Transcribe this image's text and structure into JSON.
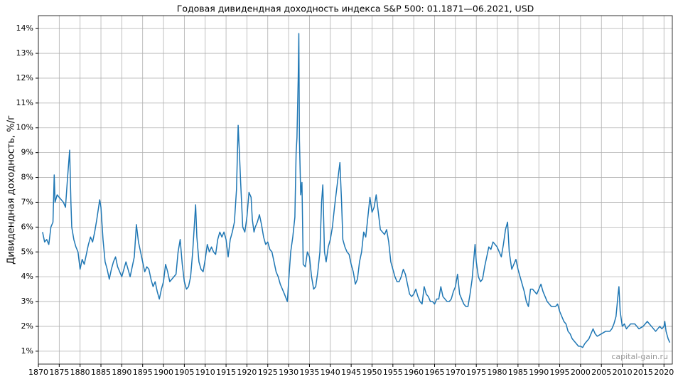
{
  "chart_data": {
    "type": "line",
    "title": "Годовая дивидендная доходность индекса S&P 500: 01.1871—06.2021, USD",
    "y_label": "Дивидендная доходность, %/г",
    "watermark": "capital-gain.ru",
    "color": "#1f77b4",
    "grid": true,
    "xlim": [
      1870,
      2022
    ],
    "ylim": [
      0.48,
      14.52
    ],
    "xticks": [
      1870,
      1875,
      1880,
      1885,
      1890,
      1895,
      1900,
      1905,
      1910,
      1915,
      1920,
      1925,
      1930,
      1935,
      1940,
      1945,
      1950,
      1955,
      1960,
      1965,
      1970,
      1975,
      1980,
      1985,
      1990,
      1995,
      2000,
      2005,
      2010,
      2015,
      2020
    ],
    "yticks": [
      {
        "value": 1,
        "label": "1%"
      },
      {
        "value": 2,
        "label": "2%"
      },
      {
        "value": 3,
        "label": "3%"
      },
      {
        "value": 4,
        "label": "4%"
      },
      {
        "value": 5,
        "label": "5%"
      },
      {
        "value": 6,
        "label": "6%"
      },
      {
        "value": 7,
        "label": "7%"
      },
      {
        "value": 8,
        "label": "8%"
      },
      {
        "value": 9,
        "label": "9%"
      },
      {
        "value": 10,
        "label": "10%"
      },
      {
        "value": 11,
        "label": "11%"
      },
      {
        "value": 12,
        "label": "12%"
      },
      {
        "value": 13,
        "label": "13%"
      },
      {
        "value": 14,
        "label": "14%"
      }
    ],
    "x": [
      1871,
      1871.5,
      1872,
      1872.5,
      1873,
      1873.5,
      1873.8,
      1874,
      1874.5,
      1875,
      1876,
      1876.5,
      1877,
      1877.5,
      1877.8,
      1878,
      1878.5,
      1879,
      1879.5,
      1880,
      1880.5,
      1881,
      1882,
      1882.5,
      1883,
      1883.5,
      1884,
      1884.7,
      1885,
      1885.5,
      1886,
      1886.5,
      1887,
      1887.5,
      1888,
      1888.5,
      1889,
      1890,
      1890.5,
      1891,
      1891.5,
      1892,
      1892.5,
      1893,
      1893.5,
      1894,
      1894.5,
      1895,
      1895.5,
      1896,
      1896.5,
      1897,
      1897.5,
      1898,
      1898.5,
      1899,
      1899.5,
      1900,
      1900.5,
      1901,
      1901.5,
      1902,
      1903,
      1903.5,
      1904,
      1904.5,
      1905,
      1905.5,
      1906,
      1906.5,
      1907,
      1907.7,
      1908,
      1908.5,
      1909,
      1909.5,
      1910,
      1910.5,
      1911,
      1911.5,
      1912,
      1912.5,
      1913,
      1913.5,
      1914,
      1914.5,
      1915,
      1915.5,
      1916,
      1916.5,
      1917,
      1917.5,
      1917.9,
      1918.2,
      1918.5,
      1919,
      1919.5,
      1920,
      1920.5,
      1921,
      1921.3,
      1921.7,
      1922,
      1922.5,
      1923,
      1923.5,
      1924,
      1924.5,
      1925,
      1925.5,
      1926,
      1926.5,
      1927,
      1927.5,
      1928,
      1928.5,
      1929,
      1929.7,
      1930,
      1930.5,
      1931,
      1931.5,
      1931.8,
      1932,
      1932.3,
      1932.45,
      1932.6,
      1932.9,
      1933.2,
      1933.5,
      1934,
      1934.5,
      1935,
      1935.5,
      1936,
      1936.5,
      1937,
      1937.5,
      1937.9,
      1938.2,
      1938.6,
      1939,
      1939.5,
      1940,
      1940.5,
      1941,
      1941.5,
      1942,
      1942.3,
      1942.7,
      1943,
      1943.5,
      1944,
      1944.5,
      1945,
      1945.5,
      1946,
      1946.5,
      1947,
      1947.5,
      1948,
      1948.5,
      1949,
      1949.5,
      1950,
      1950.5,
      1951,
      1951.5,
      1952,
      1952.5,
      1953,
      1953.5,
      1954,
      1954.5,
      1955,
      1955.5,
      1956,
      1956.5,
      1957,
      1957.5,
      1958,
      1958.5,
      1959,
      1959.5,
      1960,
      1960.5,
      1961,
      1961.5,
      1962,
      1962.5,
      1963,
      1963.5,
      1964,
      1964.5,
      1965,
      1965.5,
      1966,
      1966.5,
      1967,
      1967.5,
      1968,
      1968.5,
      1969,
      1969.5,
      1970,
      1970.5,
      1971,
      1971.5,
      1972,
      1972.5,
      1973,
      1973.5,
      1974,
      1974.7,
      1975,
      1975.5,
      1976,
      1976.5,
      1977,
      1977.5,
      1978,
      1978.5,
      1979,
      1979.5,
      1980,
      1980.5,
      1981,
      1981.5,
      1982,
      1982.5,
      1982.9,
      1983.5,
      1984,
      1984.5,
      1985,
      1985.5,
      1986,
      1986.5,
      1987,
      1987.5,
      1988,
      1988.5,
      1989,
      1989.5,
      1990,
      1990.5,
      1991,
      1991.5,
      1992,
      1993,
      1993.5,
      1994,
      1994.5,
      1995,
      1995.5,
      1996,
      1996.5,
      1997,
      1997.5,
      1998,
      1998.5,
      1999,
      1999.5,
      2000,
      2000.5,
      2001,
      2001.5,
      2002,
      2002.5,
      2003,
      2003.5,
      2004,
      2005,
      2006,
      2007,
      2007.5,
      2008,
      2008.5,
      2009,
      2009.2,
      2009.5,
      2010,
      2010.5,
      2011,
      2011.5,
      2012,
      2012.5,
      2013,
      2013.5,
      2014,
      2015,
      2015.5,
      2016,
      2016.5,
      2017,
      2018,
      2018.5,
      2019,
      2019.5,
      2020,
      2020.2,
      2020.5,
      2021,
      2021.4
    ],
    "values": [
      5.8,
      5.4,
      5.5,
      5.3,
      6.0,
      6.2,
      8.1,
      7.0,
      7.3,
      7.2,
      7.0,
      6.8,
      8.0,
      9.1,
      7.0,
      6.0,
      5.5,
      5.2,
      5.0,
      4.3,
      4.7,
      4.5,
      5.3,
      5.6,
      5.4,
      5.8,
      6.3,
      7.1,
      6.8,
      5.5,
      4.6,
      4.3,
      3.9,
      4.3,
      4.6,
      4.8,
      4.4,
      4.0,
      4.3,
      4.6,
      4.3,
      4.0,
      4.4,
      4.8,
      6.1,
      5.4,
      5.0,
      4.6,
      4.2,
      4.4,
      4.3,
      3.9,
      3.6,
      3.8,
      3.4,
      3.1,
      3.5,
      3.8,
      4.5,
      4.2,
      3.8,
      3.9,
      4.1,
      5.0,
      5.5,
      4.5,
      3.8,
      3.5,
      3.6,
      4.0,
      5.0,
      6.9,
      5.6,
      4.6,
      4.3,
      4.2,
      4.7,
      5.3,
      5.0,
      5.2,
      5.0,
      4.9,
      5.5,
      5.8,
      5.6,
      5.8,
      5.5,
      4.8,
      5.5,
      5.8,
      6.2,
      7.5,
      10.1,
      9.0,
      7.8,
      6.0,
      5.8,
      6.4,
      7.4,
      7.2,
      6.3,
      5.8,
      6.0,
      6.2,
      6.5,
      6.1,
      5.6,
      5.3,
      5.4,
      5.1,
      5.0,
      4.6,
      4.2,
      4.0,
      3.7,
      3.5,
      3.3,
      3.0,
      3.8,
      5.0,
      5.6,
      6.4,
      9.0,
      9.6,
      12.0,
      13.8,
      9.5,
      7.3,
      7.8,
      4.5,
      4.4,
      5.0,
      4.8,
      4.0,
      3.5,
      3.6,
      4.2,
      5.0,
      7.0,
      7.7,
      5.0,
      4.6,
      5.2,
      5.5,
      6.0,
      6.8,
      7.5,
      8.2,
      8.6,
      7.0,
      5.5,
      5.2,
      5.0,
      4.9,
      4.5,
      4.2,
      3.7,
      3.9,
      4.6,
      5.0,
      5.8,
      5.6,
      6.4,
      7.2,
      6.6,
      6.8,
      7.3,
      6.6,
      5.9,
      5.8,
      5.7,
      5.9,
      5.4,
      4.6,
      4.3,
      4.0,
      3.8,
      3.8,
      4.0,
      4.3,
      4.1,
      3.7,
      3.3,
      3.2,
      3.3,
      3.5,
      3.2,
      3.0,
      2.9,
      3.6,
      3.3,
      3.2,
      3.0,
      3.0,
      2.9,
      3.1,
      3.1,
      3.6,
      3.2,
      3.1,
      3.0,
      3.0,
      3.1,
      3.4,
      3.6,
      4.1,
      3.3,
      3.1,
      2.9,
      2.8,
      2.8,
      3.3,
      3.9,
      5.3,
      4.6,
      4.0,
      3.8,
      3.9,
      4.4,
      4.8,
      5.2,
      5.1,
      5.4,
      5.3,
      5.2,
      5.0,
      4.8,
      5.3,
      5.9,
      6.2,
      5.0,
      4.3,
      4.5,
      4.7,
      4.3,
      4.0,
      3.7,
      3.4,
      3.0,
      2.8,
      3.5,
      3.5,
      3.4,
      3.3,
      3.5,
      3.7,
      3.4,
      3.2,
      3.0,
      2.8,
      2.8,
      2.8,
      2.9,
      2.6,
      2.4,
      2.2,
      2.1,
      1.8,
      1.7,
      1.5,
      1.4,
      1.3,
      1.2,
      1.2,
      1.15,
      1.3,
      1.4,
      1.5,
      1.7,
      1.9,
      1.7,
      1.6,
      1.7,
      1.8,
      1.8,
      1.9,
      2.1,
      2.4,
      3.3,
      3.6,
      2.6,
      2.0,
      2.1,
      1.9,
      2.0,
      2.1,
      2.1,
      2.1,
      2.0,
      1.9,
      2.0,
      2.1,
      2.2,
      2.1,
      2.0,
      1.8,
      1.9,
      2.0,
      1.9,
      2.0,
      2.2,
      1.8,
      1.5,
      1.35
    ]
  }
}
